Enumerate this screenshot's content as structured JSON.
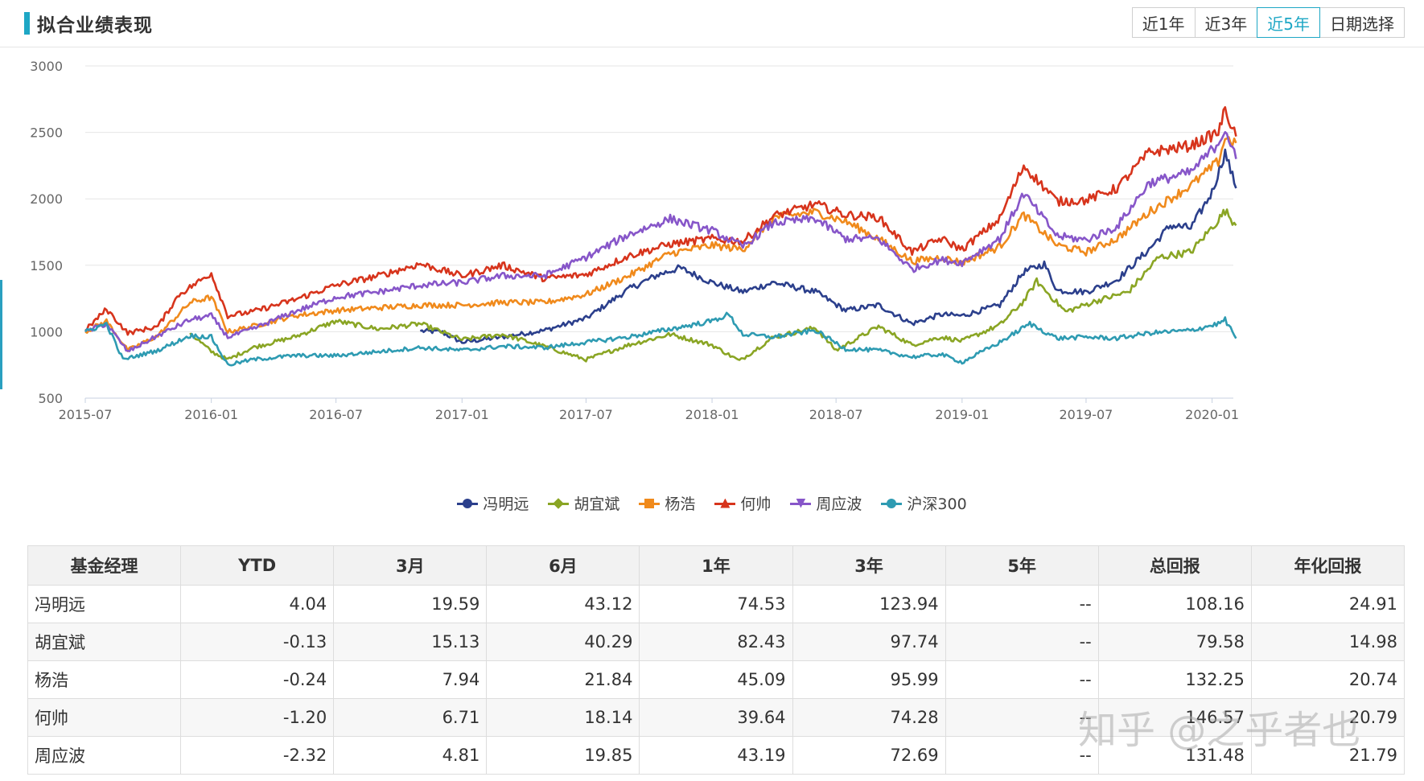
{
  "header": {
    "title": "拟合业绩表现"
  },
  "range_buttons": [
    "近1年",
    "近3年",
    "近5年",
    "日期选择"
  ],
  "range_active": 2,
  "colors": {
    "冯明远": "#2b3f8c",
    "胡宜斌": "#8aa524",
    "杨浩": "#f08a1c",
    "何帅": "#d7341c",
    "周应波": "#8756c9",
    "沪深300": "#2e9bb2"
  },
  "chart_data": {
    "type": "line",
    "x_range": [
      "2015-07",
      "2020-02"
    ],
    "x_ticks": [
      "2015-07",
      "2016-01",
      "2016-07",
      "2017-01",
      "2017-07",
      "2018-01",
      "2018-07",
      "2019-01",
      "2019-07",
      "2020-01"
    ],
    "ylim": [
      500,
      3000
    ],
    "y_ticks": [
      500,
      1000,
      1500,
      2000,
      2500,
      3000
    ],
    "grid": true,
    "legend_position": "bottom",
    "series": [
      {
        "name": "冯明远",
        "points": [
          [
            "2016-11-01",
            1005
          ],
          [
            "2016-12-01",
            1000
          ],
          [
            "2017-01-01",
            920
          ],
          [
            "2017-03-01",
            960
          ],
          [
            "2017-05-01",
            1010
          ],
          [
            "2017-07-01",
            1100
          ],
          [
            "2017-09-01",
            1320
          ],
          [
            "2017-10-15",
            1430
          ],
          [
            "2017-11-15",
            1480
          ],
          [
            "2018-01-01",
            1370
          ],
          [
            "2018-02-15",
            1300
          ],
          [
            "2018-04-01",
            1370
          ],
          [
            "2018-06-01",
            1300
          ],
          [
            "2018-07-15",
            1160
          ],
          [
            "2018-09-01",
            1200
          ],
          [
            "2018-10-20",
            1060
          ],
          [
            "2018-12-01",
            1130
          ],
          [
            "2019-01-01",
            1120
          ],
          [
            "2019-02-25",
            1200
          ],
          [
            "2019-04-01",
            1450
          ],
          [
            "2019-05-01",
            1510
          ],
          [
            "2019-05-20",
            1310
          ],
          [
            "2019-07-01",
            1300
          ],
          [
            "2019-08-15",
            1390
          ],
          [
            "2019-10-01",
            1620
          ],
          [
            "2019-11-01",
            1800
          ],
          [
            "2019-12-01",
            1780
          ],
          [
            "2020-01-01",
            2050
          ],
          [
            "2020-01-20",
            2350
          ],
          [
            "2020-02-05",
            2080
          ]
        ]
      },
      {
        "name": "胡宜斌",
        "points": [
          [
            "2015-12-01",
            990
          ],
          [
            "2016-01-01",
            850
          ],
          [
            "2016-01-25",
            790
          ],
          [
            "2016-03-01",
            880
          ],
          [
            "2016-05-01",
            960
          ],
          [
            "2016-07-01",
            1080
          ],
          [
            "2016-09-01",
            1020
          ],
          [
            "2016-11-01",
            1060
          ],
          [
            "2017-01-01",
            940
          ],
          [
            "2017-03-01",
            980
          ],
          [
            "2017-05-01",
            890
          ],
          [
            "2017-07-01",
            790
          ],
          [
            "2017-09-01",
            900
          ],
          [
            "2017-11-01",
            980
          ],
          [
            "2018-01-01",
            900
          ],
          [
            "2018-02-10",
            780
          ],
          [
            "2018-04-01",
            960
          ],
          [
            "2018-06-01",
            1030
          ],
          [
            "2018-07-01",
            860
          ],
          [
            "2018-09-01",
            1040
          ],
          [
            "2018-10-20",
            900
          ],
          [
            "2018-12-01",
            960
          ],
          [
            "2019-01-01",
            930
          ],
          [
            "2019-02-25",
            1050
          ],
          [
            "2019-04-01",
            1230
          ],
          [
            "2019-04-20",
            1380
          ],
          [
            "2019-06-01",
            1150
          ],
          [
            "2019-07-15",
            1230
          ],
          [
            "2019-09-01",
            1300
          ],
          [
            "2019-10-15",
            1560
          ],
          [
            "2019-12-01",
            1600
          ],
          [
            "2020-01-10",
            1840
          ],
          [
            "2020-01-20",
            1910
          ],
          [
            "2020-02-05",
            1800
          ]
        ]
      },
      {
        "name": "杨浩",
        "points": [
          [
            "2015-07-01",
            1000
          ],
          [
            "2015-08-01",
            1080
          ],
          [
            "2015-09-01",
            860
          ],
          [
            "2015-10-15",
            970
          ],
          [
            "2015-12-01",
            1220
          ],
          [
            "2016-01-01",
            1260
          ],
          [
            "2016-01-25",
            1000
          ],
          [
            "2016-03-01",
            1040
          ],
          [
            "2016-05-01",
            1120
          ],
          [
            "2016-07-01",
            1160
          ],
          [
            "2016-09-01",
            1180
          ],
          [
            "2016-11-01",
            1200
          ],
          [
            "2017-01-01",
            1200
          ],
          [
            "2017-03-01",
            1220
          ],
          [
            "2017-05-01",
            1220
          ],
          [
            "2017-07-01",
            1280
          ],
          [
            "2017-09-01",
            1420
          ],
          [
            "2017-11-01",
            1590
          ],
          [
            "2018-01-01",
            1650
          ],
          [
            "2018-02-15",
            1620
          ],
          [
            "2018-04-01",
            1860
          ],
          [
            "2018-06-01",
            1900
          ],
          [
            "2018-07-15",
            1830
          ],
          [
            "2018-09-01",
            1700
          ],
          [
            "2018-10-20",
            1530
          ],
          [
            "2018-12-01",
            1560
          ],
          [
            "2019-01-01",
            1520
          ],
          [
            "2019-02-25",
            1640
          ],
          [
            "2019-04-01",
            1880
          ],
          [
            "2019-05-20",
            1650
          ],
          [
            "2019-07-01",
            1600
          ],
          [
            "2019-08-15",
            1700
          ],
          [
            "2019-10-01",
            1900
          ],
          [
            "2019-12-01",
            2100
          ],
          [
            "2020-01-10",
            2280
          ],
          [
            "2020-01-20",
            2460
          ],
          [
            "2020-02-05",
            2420
          ]
        ]
      },
      {
        "name": "何帅",
        "points": [
          [
            "2015-07-01",
            1010
          ],
          [
            "2015-08-01",
            1170
          ],
          [
            "2015-09-01",
            990
          ],
          [
            "2015-10-15",
            1040
          ],
          [
            "2015-11-15",
            1280
          ],
          [
            "2016-01-01",
            1440
          ],
          [
            "2016-01-25",
            1120
          ],
          [
            "2016-03-01",
            1150
          ],
          [
            "2016-05-01",
            1240
          ],
          [
            "2016-07-01",
            1350
          ],
          [
            "2016-09-01",
            1420
          ],
          [
            "2016-11-01",
            1510
          ],
          [
            "2017-01-01",
            1420
          ],
          [
            "2017-03-01",
            1500
          ],
          [
            "2017-05-01",
            1400
          ],
          [
            "2017-07-01",
            1430
          ],
          [
            "2017-09-01",
            1570
          ],
          [
            "2017-11-01",
            1660
          ],
          [
            "2018-01-01",
            1700
          ],
          [
            "2018-02-15",
            1680
          ],
          [
            "2018-04-01",
            1870
          ],
          [
            "2018-06-01",
            1960
          ],
          [
            "2018-07-15",
            1880
          ],
          [
            "2018-09-01",
            1860
          ],
          [
            "2018-10-20",
            1600
          ],
          [
            "2018-12-01",
            1700
          ],
          [
            "2019-01-01",
            1620
          ],
          [
            "2019-02-25",
            1850
          ],
          [
            "2019-04-01",
            2250
          ],
          [
            "2019-05-20",
            1980
          ],
          [
            "2019-07-01",
            1990
          ],
          [
            "2019-08-15",
            2080
          ],
          [
            "2019-10-01",
            2350
          ],
          [
            "2019-12-01",
            2400
          ],
          [
            "2020-01-10",
            2500
          ],
          [
            "2020-01-20",
            2670
          ],
          [
            "2020-02-05",
            2470
          ]
        ]
      },
      {
        "name": "周应波",
        "points": [
          [
            "2015-07-01",
            1000
          ],
          [
            "2015-08-01",
            1060
          ],
          [
            "2015-09-01",
            850
          ],
          [
            "2015-10-15",
            970
          ],
          [
            "2015-12-01",
            1090
          ],
          [
            "2016-01-01",
            1120
          ],
          [
            "2016-01-25",
            960
          ],
          [
            "2016-03-01",
            1020
          ],
          [
            "2016-05-01",
            1150
          ],
          [
            "2016-07-01",
            1260
          ],
          [
            "2016-09-01",
            1300
          ],
          [
            "2016-11-01",
            1350
          ],
          [
            "2017-01-01",
            1370
          ],
          [
            "2017-03-01",
            1420
          ],
          [
            "2017-05-01",
            1420
          ],
          [
            "2017-07-01",
            1560
          ],
          [
            "2017-09-01",
            1730
          ],
          [
            "2017-11-01",
            1850
          ],
          [
            "2018-01-01",
            1760
          ],
          [
            "2018-02-15",
            1640
          ],
          [
            "2018-04-01",
            1820
          ],
          [
            "2018-06-01",
            1850
          ],
          [
            "2018-07-15",
            1700
          ],
          [
            "2018-09-01",
            1700
          ],
          [
            "2018-10-20",
            1470
          ],
          [
            "2018-12-01",
            1540
          ],
          [
            "2019-01-01",
            1520
          ],
          [
            "2019-02-25",
            1700
          ],
          [
            "2019-04-01",
            2040
          ],
          [
            "2019-05-20",
            1720
          ],
          [
            "2019-07-01",
            1690
          ],
          [
            "2019-08-15",
            1790
          ],
          [
            "2019-10-01",
            2120
          ],
          [
            "2019-12-01",
            2200
          ],
          [
            "2020-01-10",
            2420
          ],
          [
            "2020-01-20",
            2530
          ],
          [
            "2020-02-05",
            2300
          ]
        ]
      },
      {
        "name": "沪深300",
        "points": [
          [
            "2015-07-01",
            1000
          ],
          [
            "2015-08-01",
            1060
          ],
          [
            "2015-08-25",
            790
          ],
          [
            "2015-10-15",
            860
          ],
          [
            "2015-12-01",
            970
          ],
          [
            "2016-01-01",
            960
          ],
          [
            "2016-01-25",
            750
          ],
          [
            "2016-03-01",
            790
          ],
          [
            "2016-05-01",
            820
          ],
          [
            "2016-07-01",
            820
          ],
          [
            "2016-09-01",
            850
          ],
          [
            "2016-11-01",
            880
          ],
          [
            "2017-01-01",
            860
          ],
          [
            "2017-03-01",
            890
          ],
          [
            "2017-05-01",
            880
          ],
          [
            "2017-07-01",
            920
          ],
          [
            "2017-09-01",
            960
          ],
          [
            "2017-11-01",
            1020
          ],
          [
            "2018-01-01",
            1080
          ],
          [
            "2018-01-25",
            1130
          ],
          [
            "2018-02-15",
            980
          ],
          [
            "2018-04-01",
            960
          ],
          [
            "2018-06-01",
            1010
          ],
          [
            "2018-07-15",
            870
          ],
          [
            "2018-09-01",
            860
          ],
          [
            "2018-10-20",
            810
          ],
          [
            "2018-12-01",
            830
          ],
          [
            "2019-01-01",
            770
          ],
          [
            "2019-02-25",
            920
          ],
          [
            "2019-04-10",
            1060
          ],
          [
            "2019-05-20",
            950
          ],
          [
            "2019-07-01",
            960
          ],
          [
            "2019-08-15",
            950
          ],
          [
            "2019-10-01",
            990
          ],
          [
            "2019-12-01",
            1010
          ],
          [
            "2020-01-10",
            1060
          ],
          [
            "2020-01-20",
            1090
          ],
          [
            "2020-02-05",
            950
          ]
        ]
      }
    ]
  },
  "table": {
    "headers": [
      "基金经理",
      "YTD",
      "3月",
      "6月",
      "1年",
      "3年",
      "5年",
      "总回报",
      "年化回报"
    ],
    "rows": [
      [
        "冯明远",
        "4.04",
        "19.59",
        "43.12",
        "74.53",
        "123.94",
        "--",
        "108.16",
        "24.91"
      ],
      [
        "胡宜斌",
        "-0.13",
        "15.13",
        "40.29",
        "82.43",
        "97.74",
        "--",
        "79.58",
        "14.98"
      ],
      [
        "杨浩",
        "-0.24",
        "7.94",
        "21.84",
        "45.09",
        "95.99",
        "--",
        "132.25",
        "20.74"
      ],
      [
        "何帅",
        "-1.20",
        "6.71",
        "18.14",
        "39.64",
        "74.28",
        "--",
        "146.57",
        "20.79"
      ],
      [
        "周应波",
        "-2.32",
        "4.81",
        "19.85",
        "43.19",
        "72.69",
        "--",
        "131.48",
        "21.79"
      ]
    ]
  },
  "watermark": "知乎 @之乎者也"
}
